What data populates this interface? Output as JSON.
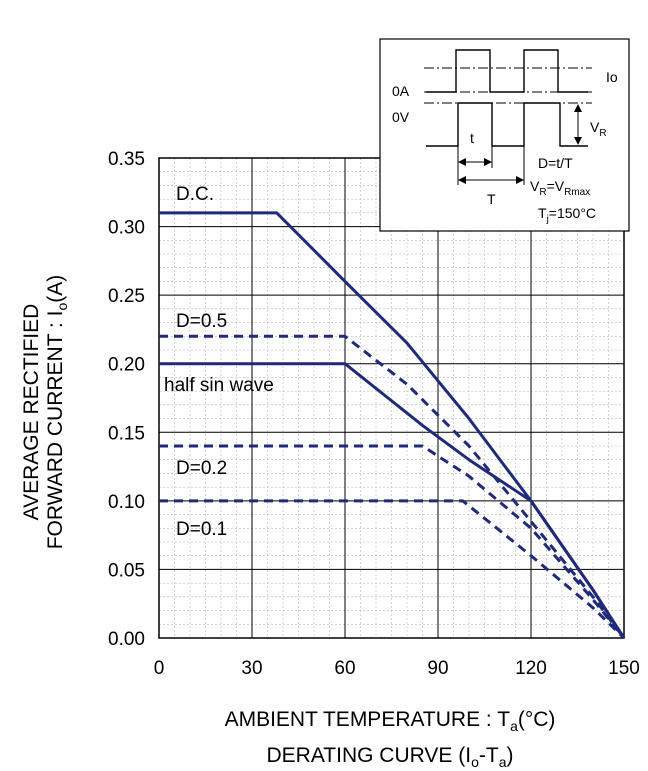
{
  "chart_data": {
    "type": "line",
    "xlim": [
      0,
      150
    ],
    "ylim": [
      0,
      0.35
    ],
    "x_ticks": [
      "0",
      "30",
      "60",
      "90",
      "120",
      "150"
    ],
    "y_ticks": [
      "0.00",
      "0.05",
      "0.10",
      "0.15",
      "0.20",
      "0.25",
      "0.30",
      "0.35"
    ],
    "xlabel": "AMBIENT TEMPERATURE : Ta(°C)",
    "xlabel_parts": {
      "pre": "AMBIENT TEMPERATURE : T",
      "sub": "a",
      "post": "(°C)"
    },
    "ylabel_line1": "AVERAGE RECTIFIED",
    "ylabel_line2": {
      "pre": "FORWARD CURRENT : I",
      "sub": "o",
      "post": "(A)"
    },
    "caption": {
      "pre": "DERATING CURVE (I",
      "sub1": "o",
      "mid": "-T",
      "sub2": "a",
      "post": ")"
    },
    "grid": true,
    "minor_grid": true,
    "series": [
      {
        "name": "D.C.",
        "style": "solid",
        "points": [
          [
            0,
            0.31
          ],
          [
            38,
            0.31
          ],
          [
            60,
            0.26
          ],
          [
            80,
            0.215
          ],
          [
            100,
            0.16
          ],
          [
            120,
            0.1
          ],
          [
            140,
            0.035
          ],
          [
            150,
            0.0
          ]
        ]
      },
      {
        "name": "D=0.5",
        "style": "dashed",
        "points": [
          [
            0,
            0.22
          ],
          [
            60,
            0.22
          ],
          [
            80,
            0.185
          ],
          [
            100,
            0.14
          ],
          [
            120,
            0.085
          ],
          [
            140,
            0.03
          ],
          [
            150,
            0.0
          ]
        ]
      },
      {
        "name": "half sin wave",
        "style": "solid",
        "points": [
          [
            0,
            0.2
          ],
          [
            60,
            0.2
          ],
          [
            85,
            0.155
          ],
          [
            100,
            0.13
          ],
          [
            120,
            0.1
          ],
          [
            140,
            0.035
          ],
          [
            150,
            0.0
          ]
        ]
      },
      {
        "name": "D=0.2",
        "style": "dashed",
        "points": [
          [
            0,
            0.14
          ],
          [
            85,
            0.14
          ],
          [
            100,
            0.118
          ],
          [
            120,
            0.08
          ],
          [
            140,
            0.028
          ],
          [
            150,
            0.0
          ]
        ]
      },
      {
        "name": "D=0.1",
        "style": "dashed",
        "points": [
          [
            0,
            0.1
          ],
          [
            98,
            0.1
          ],
          [
            120,
            0.06
          ],
          [
            140,
            0.022
          ],
          [
            150,
            0.0
          ]
        ]
      }
    ],
    "line_color": "#1f2a7a"
  },
  "inset": {
    "label_0A": "0A",
    "label_0V": "0V",
    "label_Io": "Io",
    "label_t": "t",
    "label_T": "T",
    "label_VR": {
      "pre": "V",
      "sub": "R"
    },
    "eq1": "D=t/T",
    "eq2": {
      "a": "V",
      "a_sub": "R",
      "mid": "=V",
      "b_sub": "Rmax"
    },
    "eq3": {
      "pre": "T",
      "sub": "j",
      "post": "=150°C"
    }
  }
}
